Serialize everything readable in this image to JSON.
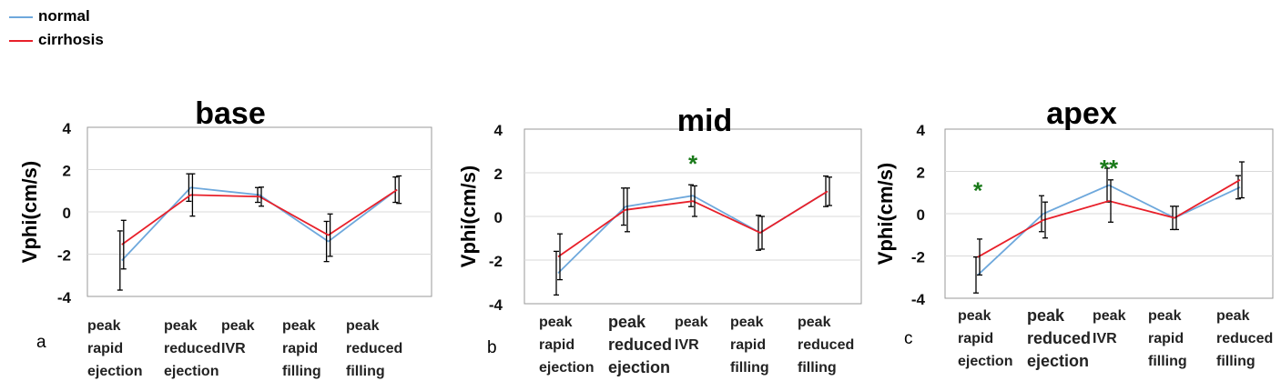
{
  "legend": [
    {
      "name": "normal",
      "color": "#6ea8dc"
    },
    {
      "name": "cirrhosis",
      "color": "#e8202a"
    }
  ],
  "chart_data": [
    {
      "type": "line",
      "panel_letter": "a",
      "title": "base",
      "ylabel": "Vphi(cm/s)",
      "ylim": [
        -4,
        4
      ],
      "yticks": [
        "4",
        "2",
        "0",
        "-2",
        "-4"
      ],
      "categories": [
        [
          "peak",
          "rapid",
          "ejection"
        ],
        [
          "peak",
          "reduced",
          "ejection"
        ],
        [
          "peak",
          "IVR"
        ],
        [
          "peak",
          "rapid",
          "filling"
        ],
        [
          "peak",
          "reduced",
          "filling"
        ]
      ],
      "series": [
        {
          "name": "normal",
          "values": [
            -2.3,
            1.15,
            0.8,
            -1.4,
            1.05
          ],
          "errors": [
            1.4,
            0.65,
            0.35,
            0.95,
            0.6
          ]
        },
        {
          "name": "cirrhosis",
          "values": [
            -1.55,
            0.8,
            0.72,
            -1.1,
            1.05
          ],
          "errors": [
            1.15,
            1.0,
            0.45,
            1.0,
            0.65
          ]
        }
      ],
      "annotations": []
    },
    {
      "type": "line",
      "panel_letter": "b",
      "title": "mid",
      "ylabel": "Vphi(cm/s)",
      "ylim": [
        -4,
        4
      ],
      "yticks": [
        "4",
        "2",
        "0",
        "-2",
        "-4"
      ],
      "categories": [
        [
          "peak",
          "rapid",
          "ejection"
        ],
        [
          "peak",
          "reduced",
          "ejection"
        ],
        [
          "peak",
          "IVR"
        ],
        [
          "peak",
          "rapid",
          "filling"
        ],
        [
          "peak",
          "reduced",
          "filling"
        ]
      ],
      "series": [
        {
          "name": "normal",
          "values": [
            -2.6,
            0.45,
            0.95,
            -0.75,
            1.15
          ],
          "errors": [
            1.0,
            0.85,
            0.5,
            0.8,
            0.7
          ]
        },
        {
          "name": "cirrhosis",
          "values": [
            -1.85,
            0.3,
            0.7,
            -0.75,
            1.15
          ],
          "errors": [
            1.05,
            1.0,
            0.7,
            0.75,
            0.65
          ]
        }
      ],
      "annotations": [
        {
          "text": "*",
          "category_index": 2,
          "y": 2.45
        }
      ]
    },
    {
      "type": "line",
      "panel_letter": "c",
      "title": "apex",
      "ylabel": "Vphi(cm/s)",
      "ylim": [
        -4,
        4
      ],
      "yticks": [
        "4",
        "2",
        "0",
        "-2",
        "-4"
      ],
      "categories": [
        [
          "peak",
          "rapid",
          "ejection"
        ],
        [
          "peak",
          "reduced",
          "ejection"
        ],
        [
          "peak",
          "IVR"
        ],
        [
          "peak",
          "rapid",
          "filling"
        ],
        [
          "peak",
          "reduced",
          "filling"
        ]
      ],
      "series": [
        {
          "name": "normal",
          "values": [
            -2.9,
            0.0,
            1.35,
            -0.2,
            1.25
          ],
          "errors": [
            0.85,
            0.85,
            0.8,
            0.55,
            0.55
          ]
        },
        {
          "name": "cirrhosis",
          "values": [
            -2.05,
            -0.3,
            0.6,
            -0.2,
            1.6
          ],
          "errors": [
            0.85,
            0.85,
            1.0,
            0.55,
            0.85
          ]
        }
      ],
      "annotations": [
        {
          "text": "*",
          "category_index": 0,
          "y": 1.15
        },
        {
          "text": "**",
          "category_index": 2,
          "y": 2.2
        }
      ]
    }
  ]
}
